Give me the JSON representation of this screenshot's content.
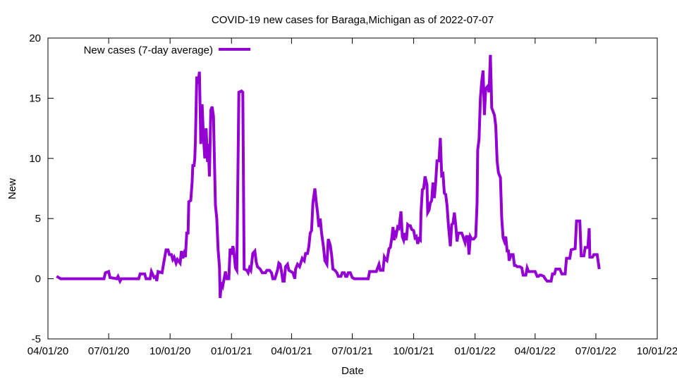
{
  "chart_data": {
    "type": "line",
    "title": "COVID-19 new cases for Baraga,Michigan as of 2022-07-07",
    "xlabel": "Date",
    "ylabel": "New",
    "x_units": "days since 2020-04-01",
    "xlim": [
      0,
      913
    ],
    "ylim": [
      -5,
      20
    ],
    "grid": false,
    "legend_position": "top-left",
    "x_ticks": [
      {
        "value": 0,
        "label": "04/01/20"
      },
      {
        "value": 91,
        "label": "07/01/20"
      },
      {
        "value": 183,
        "label": "10/01/20"
      },
      {
        "value": 275,
        "label": "01/01/21"
      },
      {
        "value": 365,
        "label": "04/01/21"
      },
      {
        "value": 456,
        "label": "07/01/21"
      },
      {
        "value": 548,
        "label": "10/01/21"
      },
      {
        "value": 640,
        "label": "01/01/22"
      },
      {
        "value": 730,
        "label": "04/01/22"
      },
      {
        "value": 821,
        "label": "07/01/22"
      },
      {
        "value": 913,
        "label": "10/01/22"
      }
    ],
    "y_ticks": [
      {
        "value": -5,
        "label": "-5"
      },
      {
        "value": 0,
        "label": "0"
      },
      {
        "value": 5,
        "label": "5"
      },
      {
        "value": 10,
        "label": "10"
      },
      {
        "value": 15,
        "label": "15"
      },
      {
        "value": 20,
        "label": "20"
      }
    ],
    "series": [
      {
        "name": "New cases (7-day average)",
        "color": "#9400D3",
        "x": [
          13,
          19,
          84,
          86,
          91,
          93,
          103,
          105,
          108,
          110,
          136,
          138,
          145,
          147,
          153,
          155,
          159,
          162,
          163,
          165,
          171,
          174,
          177,
          180,
          182,
          185,
          187,
          189,
          192,
          194,
          198,
          200,
          202,
          204,
          206,
          208,
          210,
          211,
          214,
          216,
          217,
          219,
          220,
          221,
          223,
          225,
          227,
          229,
          231,
          233,
          235,
          237,
          239,
          240,
          242,
          244,
          246,
          248,
          251,
          253,
          255,
          257,
          258,
          260,
          262,
          264,
          266,
          268,
          271,
          273,
          275,
          277,
          278,
          281,
          283,
          286,
          290,
          292,
          294,
          298,
          300,
          302,
          304,
          307,
          310,
          312,
          314,
          318,
          321,
          326,
          328,
          332,
          335,
          337,
          340,
          344,
          346,
          348,
          350,
          352,
          354,
          356,
          359,
          361,
          367,
          370,
          371,
          374,
          377,
          381,
          384,
          386,
          389,
          391,
          393,
          395,
          397,
          400,
          402,
          404,
          406,
          408,
          410,
          413,
          415,
          418,
          420,
          423,
          425,
          427,
          430,
          433,
          435,
          439,
          441,
          444,
          446,
          448,
          450,
          453,
          456,
          459,
          480,
          482,
          492,
          494,
          496,
          498,
          502,
          504,
          506,
          508,
          511,
          513,
          515,
          517,
          519,
          520,
          522,
          524,
          526,
          529,
          531,
          533,
          535,
          537,
          539,
          541,
          543,
          545,
          548,
          550,
          552,
          554,
          556,
          558,
          559,
          561,
          563,
          565,
          568,
          569,
          571,
          573,
          575,
          577,
          579,
          581,
          583,
          586,
          588,
          590,
          592,
          594,
          596,
          598,
          600,
          603,
          605,
          607,
          609,
          611,
          613,
          615,
          620,
          622,
          625,
          627,
          629,
          631,
          633,
          635,
          638,
          641,
          643,
          644,
          646,
          648,
          650,
          652,
          654,
          656,
          659,
          661,
          663,
          665,
          667,
          669,
          671,
          673,
          675,
          678,
          680,
          682,
          684,
          686,
          688,
          690,
          691,
          694,
          697,
          699,
          701,
          703,
          707,
          710,
          712,
          716,
          718,
          720,
          730,
          733,
          735,
          737,
          739,
          743,
          745,
          748,
          754,
          756,
          759,
          761,
          767,
          770,
          775,
          777,
          782,
          784,
          790,
          792,
          797,
          799,
          803,
          805,
          809,
          811,
          812,
          816,
          818,
          823,
          826
        ],
        "y": [
          0.2,
          0,
          0,
          0.5,
          0.6,
          0.1,
          0,
          0.2,
          -0.2,
          0,
          0,
          0.4,
          0.4,
          0,
          0,
          0.6,
          0.1,
          0.2,
          -0.2,
          0.6,
          0.5,
          1.5,
          2.4,
          2.4,
          2.0,
          2.0,
          1.6,
          1.8,
          1.3,
          1.6,
          1.3,
          2.3,
          1.7,
          2.1,
          1.8,
          3.8,
          3.8,
          6.4,
          6.5,
          8,
          9.4,
          9.4,
          10,
          11.4,
          16.8,
          16.2,
          17.2,
          11.2,
          14.5,
          11.8,
          10,
          12.5,
          9.7,
          11.2,
          8.5,
          14,
          14.3,
          13.5,
          6.1,
          5,
          2.4,
          1,
          -1.6,
          -0.3,
          -0.6,
          0,
          0.6,
          0,
          0,
          2.5,
          2.0,
          2.7,
          2.5,
          0.9,
          0.7,
          15.5,
          15.6,
          15.5,
          0.8,
          0.7,
          0.5,
          0.9,
          0.7,
          2.1,
          2.3,
          1.4,
          1,
          0.8,
          0.5,
          0.5,
          0.7,
          0.7,
          0.5,
          0,
          0,
          0.7,
          1.3,
          1.2,
          0.6,
          -0.2,
          -0.2,
          1.0,
          1.2,
          0.7,
          0.5,
          0,
          0.8,
          1.2,
          1.0,
          1.7,
          1.5,
          2.1,
          2.1,
          2.7,
          3.8,
          4.0,
          6.3,
          7.5,
          6.4,
          5.5,
          4.3,
          5.0,
          3.8,
          2.6,
          1.5,
          1.2,
          3.3,
          2.8,
          2.0,
          0.8,
          0.7,
          0.5,
          0.2,
          0.2,
          0.5,
          0.5,
          0.2,
          0.2,
          0.5,
          0.5,
          0.1,
          0,
          0,
          0.6,
          0.6,
          0.9,
          1.2,
          0.7,
          0.7,
          1.8,
          1.6,
          1.5,
          2.5,
          2.6,
          3.3,
          4.3,
          3.2,
          4.0,
          3.7,
          4.3,
          4.2,
          5.6,
          3.5,
          3.2,
          3.8,
          3.2,
          4.5,
          4.4,
          4.4,
          4.1,
          4.0,
          3.4,
          3.5,
          2.9,
          3.3,
          3.2,
          5.5,
          7.4,
          7.5,
          8.5,
          7.8,
          5.5,
          5.7,
          6.3,
          6.5,
          8.0,
          6.7,
          8.0,
          9.8,
          9.8,
          11.7,
          8.6,
          8.7,
          7.1,
          7.0,
          6.1,
          4.5,
          2.7,
          4.5,
          4.6,
          5.5,
          4.5,
          3.1,
          3.8,
          3.8,
          3.5,
          3.0,
          3.5,
          3.5,
          2.0,
          3.5,
          3.3,
          3.3,
          3.5,
          6.3,
          10.7,
          11.6,
          15,
          16.4,
          17.3,
          13.6,
          15.8,
          16,
          15.5,
          18.6,
          14.2,
          13.9,
          13.6,
          12.7,
          9.8,
          8.8,
          8.4,
          5,
          3.4,
          3.1,
          3.5,
          2.3,
          2.3,
          1.5,
          2,
          2.0,
          1.1,
          1.1,
          1.0,
          1.0,
          0.9,
          0.3,
          0.3,
          0.9,
          0.6,
          0.6,
          0.2,
          0.2,
          0.3,
          0.3,
          0.2,
          0,
          -0.2,
          -0.2,
          0.4,
          0.4,
          0.8,
          0.8,
          0.4,
          0.4,
          1.7,
          1.7,
          2.4,
          2.5,
          4.8,
          4.8,
          1.9,
          1.9,
          2.6,
          2.6,
          4.2,
          1.8,
          1.8,
          2.0,
          2.0,
          0.8
        ]
      }
    ]
  }
}
